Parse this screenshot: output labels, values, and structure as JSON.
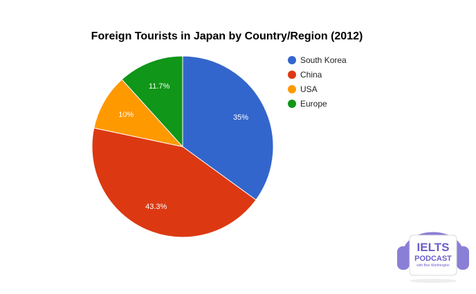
{
  "chart_data": {
    "type": "pie",
    "title": "Foreign Tourists in Japan by Country/Region (2012)",
    "categories": [
      "South Korea",
      "China",
      "USA",
      "Europe"
    ],
    "values": [
      35,
      43.3,
      10,
      11.7
    ],
    "labels": [
      "35%",
      "43.3%",
      "10%",
      "11.7%"
    ],
    "colors": [
      "#3366cc",
      "#dc3912",
      "#ff9900",
      "#109618"
    ],
    "legend_position": "right"
  },
  "watermark": {
    "brand": "IELTS",
    "sub": "PODCAST",
    "tagline": "with Ben Worthington"
  }
}
